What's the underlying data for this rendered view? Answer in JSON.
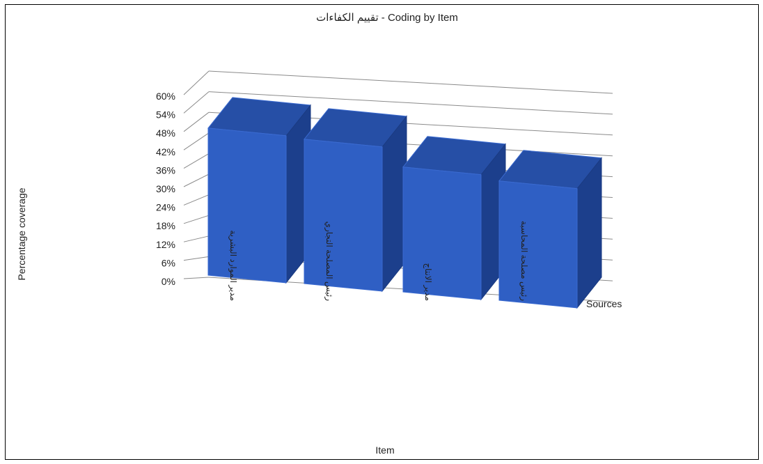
{
  "chart_data": {
    "type": "bar",
    "title": "تقييم الكفاءات - Coding by Item",
    "xlabel": "Item",
    "ylabel": "Percentage coverage",
    "depth_label": "Sources",
    "ylim": [
      0,
      60
    ],
    "yticks": [
      "0%",
      "6%",
      "12%",
      "18%",
      "24%",
      "30%",
      "36%",
      "42%",
      "48%",
      "54%",
      "60%"
    ],
    "categories": [
      "مدير الموارد البشرية",
      "رئيس المصلحة التجاري",
      "مدير الانتاج",
      "رئيس مصلحة المحاسبة"
    ],
    "series": [
      {
        "values": [
          53,
          52,
          45,
          43
        ]
      }
    ],
    "colors": {
      "front": "#2f5fc4",
      "top": "#264fa6",
      "side": "#1c3f8c",
      "grid": "#8a8a8a"
    }
  }
}
